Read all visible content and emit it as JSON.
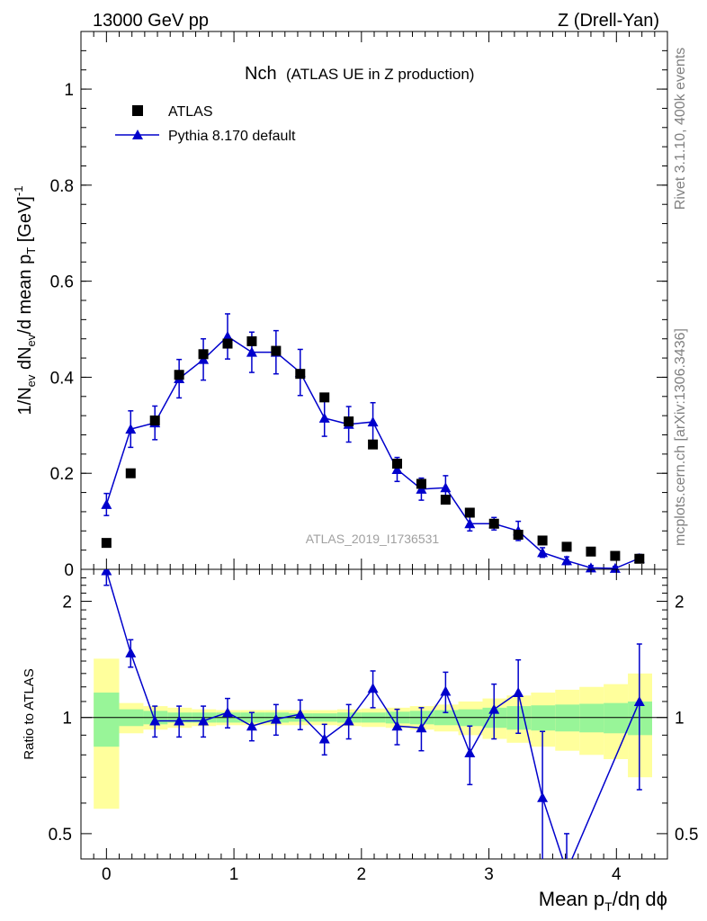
{
  "header": {
    "left": "13000 GeV pp",
    "right": "Z (Drell-Yan)"
  },
  "side_labels": {
    "rivet": "Rivet 3.1.10,  400k events",
    "mcplots": "mcplots.cern.ch [arXiv:1306.3436]"
  },
  "colors": {
    "mc": "#0000cc",
    "data": "#000000",
    "band_inner": "#98f598",
    "band_outer": "#ffff9c"
  },
  "chart_data": [
    {
      "type": "scatter",
      "panel": "main",
      "title_main": "Nch",
      "title_sub": "(ATLAS UE in Z production)",
      "watermark": "ATLAS_2019_I1736531",
      "xlabel": "Mean p_T/dη dϕ",
      "ylabel": "1/N_ev dN_ev/d mean p_T [GeV]^-1",
      "xlim": [
        -0.2,
        4.4
      ],
      "ylim": [
        0,
        1.12
      ],
      "y_ticks": [
        "0",
        "0.2",
        "0.4",
        "0.6",
        "0.8",
        "1"
      ],
      "legend_position": "top-left",
      "x": [
        0.0,
        0.19,
        0.38,
        0.57,
        0.76,
        0.95,
        1.14,
        1.33,
        1.52,
        1.71,
        1.9,
        2.09,
        2.28,
        2.47,
        2.66,
        2.85,
        3.04,
        3.23,
        3.42,
        3.61,
        3.8,
        3.99,
        4.18
      ],
      "series": [
        {
          "name": "ATLAS",
          "marker": "square",
          "values": [
            0.055,
            0.2,
            0.31,
            0.405,
            0.448,
            0.47,
            0.475,
            0.455,
            0.407,
            0.358,
            0.308,
            0.26,
            0.22,
            0.178,
            0.145,
            0.118,
            0.095,
            0.072,
            0.06,
            0.047,
            0.037,
            0.028,
            0.022
          ]
        },
        {
          "name": "Pythia 8.170 default",
          "marker": "triangle",
          "values": [
            0.135,
            0.292,
            0.305,
            0.397,
            0.437,
            0.485,
            0.452,
            0.452,
            0.41,
            0.315,
            0.302,
            0.307,
            0.208,
            0.167,
            0.17,
            0.095,
            0.095,
            0.08,
            0.035,
            0.018,
            0.003,
            0.002,
            0.023
          ],
          "errors": [
            0.023,
            0.038,
            0.035,
            0.04,
            0.043,
            0.047,
            0.042,
            0.045,
            0.048,
            0.038,
            0.037,
            0.04,
            0.025,
            0.023,
            0.025,
            0.015,
            0.013,
            0.02,
            0.01,
            0.008,
            0.005,
            0.004,
            0.008
          ]
        }
      ]
    },
    {
      "type": "line",
      "panel": "ratio",
      "ylabel": "Ratio to ATLAS",
      "xlabel": "Mean p_T/dη dϕ",
      "scale": "log",
      "ylim": [
        0.43,
        2.42
      ],
      "y_ticks": [
        "0.5",
        "1",
        "2"
      ],
      "x_ticks": [
        "0",
        "1",
        "2",
        "3",
        "4"
      ],
      "reference": 1,
      "bins_lo": [
        -0.1,
        0.1,
        0.29,
        0.48,
        0.67,
        0.86,
        1.05,
        1.24,
        1.43,
        1.62,
        1.81,
        2.0,
        2.19,
        2.38,
        2.57,
        2.76,
        2.95,
        3.14,
        3.33,
        3.52,
        3.71,
        3.9,
        4.09
      ],
      "bins_hi": [
        0.1,
        0.29,
        0.48,
        0.67,
        0.86,
        1.05,
        1.24,
        1.43,
        1.62,
        1.81,
        2.0,
        2.19,
        2.38,
        2.57,
        2.76,
        2.95,
        3.14,
        3.33,
        3.52,
        3.71,
        3.9,
        4.09,
        4.28
      ],
      "band_inner": [
        0.16,
        0.05,
        0.04,
        0.03,
        0.03,
        0.03,
        0.03,
        0.03,
        0.025,
        0.025,
        0.03,
        0.03,
        0.035,
        0.04,
        0.045,
        0.05,
        0.06,
        0.07,
        0.075,
        0.08,
        0.085,
        0.09,
        0.1
      ],
      "band_outer": [
        0.42,
        0.09,
        0.07,
        0.06,
        0.05,
        0.045,
        0.045,
        0.045,
        0.045,
        0.045,
        0.05,
        0.055,
        0.06,
        0.07,
        0.08,
        0.1,
        0.12,
        0.14,
        0.16,
        0.18,
        0.2,
        0.22,
        0.3
      ],
      "series": [
        {
          "name": "Pythia 8.170 default",
          "x": [
            0.0,
            0.19,
            0.38,
            0.57,
            0.76,
            0.95,
            1.14,
            1.33,
            1.52,
            1.71,
            1.9,
            2.09,
            2.28,
            2.47,
            2.66,
            2.85,
            3.04,
            3.23,
            3.42,
            3.61,
            4.18
          ],
          "values": [
            2.4,
            1.47,
            0.98,
            0.98,
            0.98,
            1.03,
            0.95,
            0.99,
            1.02,
            0.88,
            0.98,
            1.19,
            0.95,
            0.94,
            1.17,
            0.81,
            1.05,
            1.16,
            0.62,
            0.4,
            1.1
          ],
          "err_lo": [
            0.2,
            0.12,
            0.09,
            0.09,
            0.09,
            0.09,
            0.08,
            0.09,
            0.09,
            0.08,
            0.1,
            0.13,
            0.1,
            0.12,
            0.14,
            0.14,
            0.17,
            0.25,
            0.3,
            0.1,
            0.45
          ],
          "err_hi": [
            0.2,
            0.12,
            0.09,
            0.09,
            0.09,
            0.09,
            0.08,
            0.09,
            0.09,
            0.08,
            0.1,
            0.13,
            0.1,
            0.12,
            0.14,
            0.14,
            0.17,
            0.25,
            0.3,
            0.1,
            0.45
          ]
        }
      ]
    }
  ]
}
